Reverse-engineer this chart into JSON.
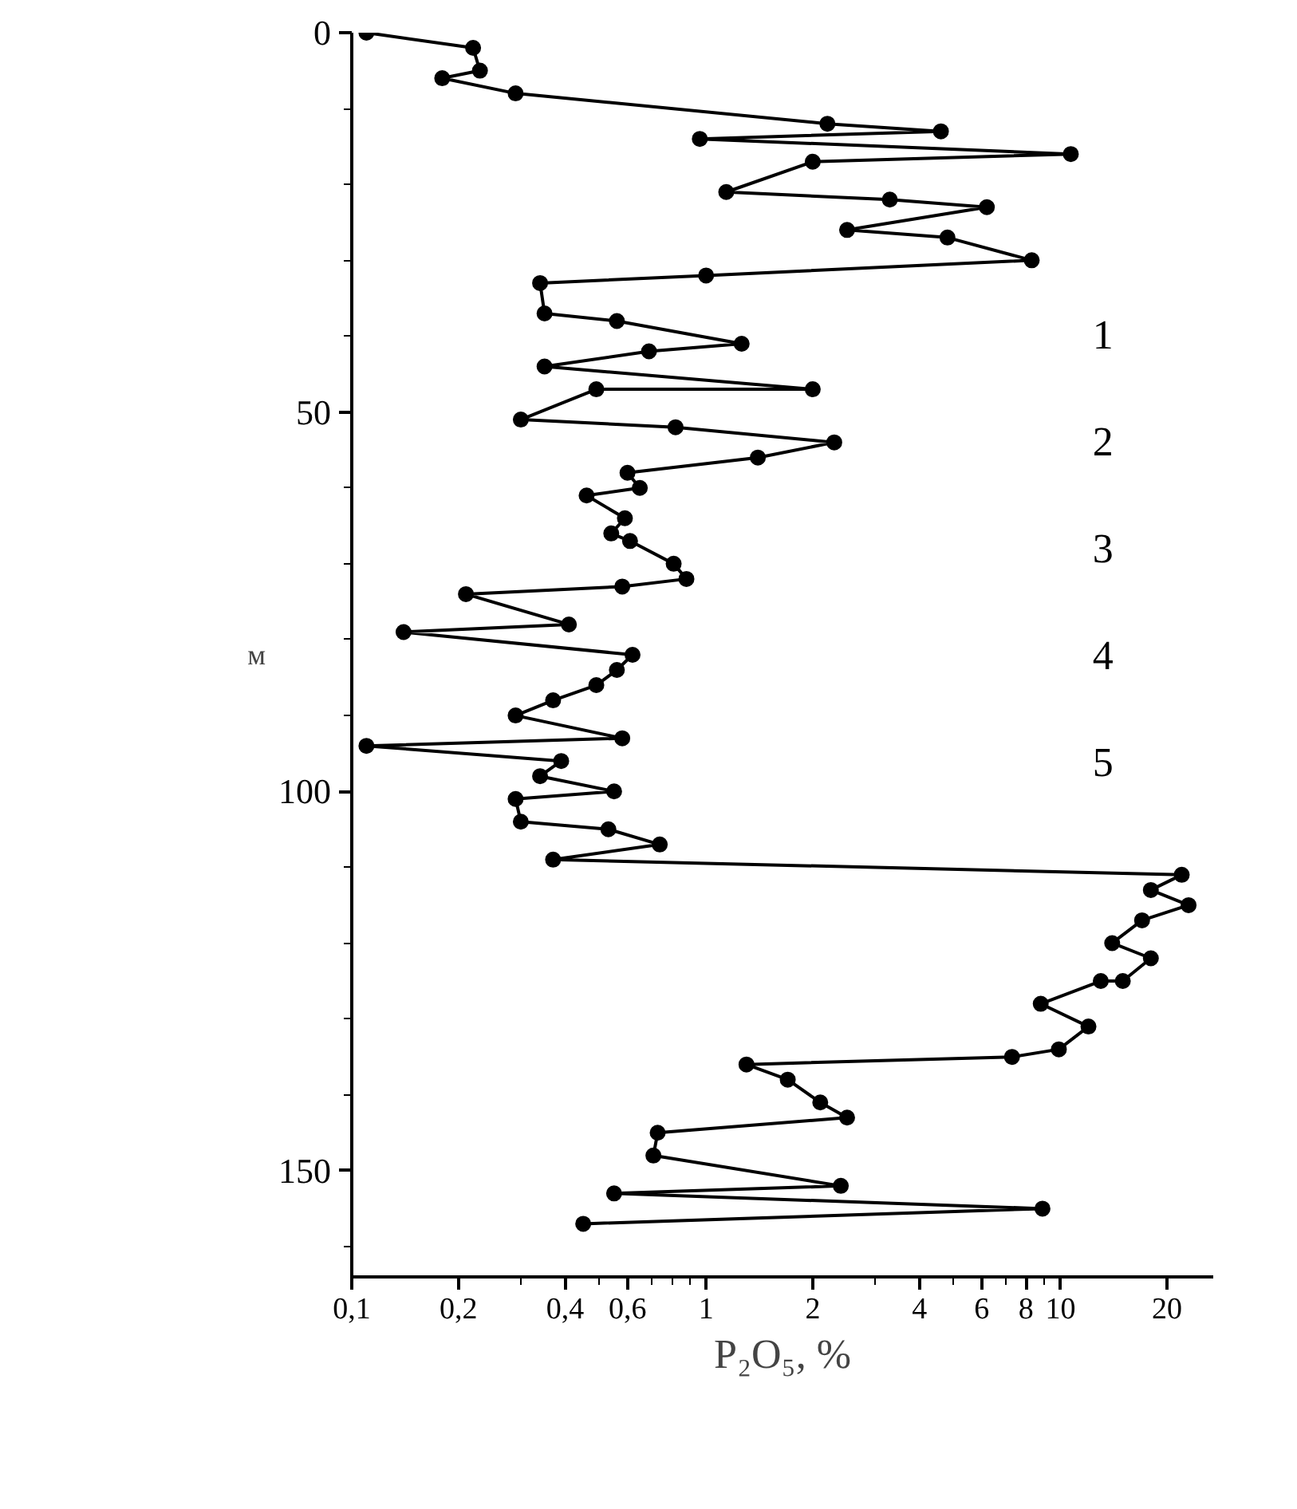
{
  "chart_data": {
    "type": "line",
    "xlabel": "P₂O₅, %",
    "ylabel": "м",
    "log": "x",
    "marker": "circle",
    "line_style": "solid",
    "grid": false,
    "xlim": [
      0.1,
      27
    ],
    "ylim": [
      164,
      0
    ],
    "xticks": [
      {
        "value": 0.1,
        "label": "0,1"
      },
      {
        "value": 0.2,
        "label": "0,2"
      },
      {
        "value": 0.3,
        "label": null
      },
      {
        "value": 0.4,
        "label": "0,4"
      },
      {
        "value": 0.5,
        "label": null
      },
      {
        "value": 0.6,
        "label": "0,6"
      },
      {
        "value": 0.7,
        "label": null
      },
      {
        "value": 0.8,
        "label": null
      },
      {
        "value": 0.9,
        "label": null
      },
      1,
      2,
      {
        "value": 3,
        "label": null
      },
      4,
      {
        "value": 5,
        "label": null
      },
      6,
      {
        "value": 7,
        "label": null
      },
      8,
      {
        "value": 9,
        "label": null
      },
      10,
      20
    ],
    "yticks": [
      0,
      {
        "value": 10,
        "label": null
      },
      {
        "value": 20,
        "label": null
      },
      {
        "value": 30,
        "label": null
      },
      {
        "value": 40,
        "label": null
      },
      50,
      {
        "value": 60,
        "label": null
      },
      {
        "value": 70,
        "label": null
      },
      {
        "value": 80,
        "label": null
      },
      {
        "value": 90,
        "label": null
      },
      100,
      {
        "value": 110,
        "label": null
      },
      {
        "value": 120,
        "label": null
      },
      {
        "value": 130,
        "label": null
      },
      {
        "value": 140,
        "label": null
      },
      150,
      {
        "value": 160,
        "label": null
      }
    ],
    "annotations": [
      "1",
      "2",
      "3",
      "4",
      "5"
    ],
    "series": [
      {
        "color": "#000000",
        "x": [
          0.11,
          0.22,
          0.23,
          0.18,
          0.29,
          2.2,
          4.6,
          0.96,
          10.7,
          2.0,
          1.14,
          3.3,
          6.2,
          2.5,
          4.8,
          8.3,
          1.0,
          0.34,
          0.35,
          0.56,
          1.26,
          0.69,
          0.35,
          2.0,
          0.49,
          0.3,
          0.82,
          2.3,
          1.4,
          0.6,
          0.65,
          0.46,
          0.59,
          0.54,
          0.61,
          0.81,
          0.88,
          0.58,
          0.21,
          0.41,
          0.14,
          0.62,
          0.56,
          0.49,
          0.37,
          0.29,
          0.58,
          0.11,
          0.39,
          0.34,
          0.55,
          0.29,
          0.3,
          0.53,
          0.74,
          0.37,
          22,
          18,
          23,
          17,
          14,
          18,
          15,
          13,
          8.8,
          12,
          9.9,
          7.3,
          1.3,
          1.7,
          2.1,
          2.5,
          0.73,
          0.71,
          2.4,
          0.55,
          8.9,
          0.45
        ],
        "values": [
          0,
          2,
          5,
          6,
          8,
          12,
          13,
          14,
          16,
          17,
          21,
          22,
          23,
          26,
          27,
          30,
          32,
          33,
          37,
          38,
          41,
          42,
          44,
          47,
          47,
          51,
          52,
          54,
          56,
          58,
          60,
          61,
          64,
          66,
          67,
          70,
          72,
          73,
          74,
          78,
          79,
          82,
          84,
          86,
          88,
          90,
          93,
          94,
          96,
          98,
          100,
          101,
          104,
          105,
          107,
          109,
          111,
          113,
          115,
          117,
          120,
          122,
          125,
          125,
          128,
          131,
          134,
          135,
          136,
          138,
          141,
          143,
          145,
          148,
          152,
          153,
          155,
          157
        ]
      }
    ]
  }
}
